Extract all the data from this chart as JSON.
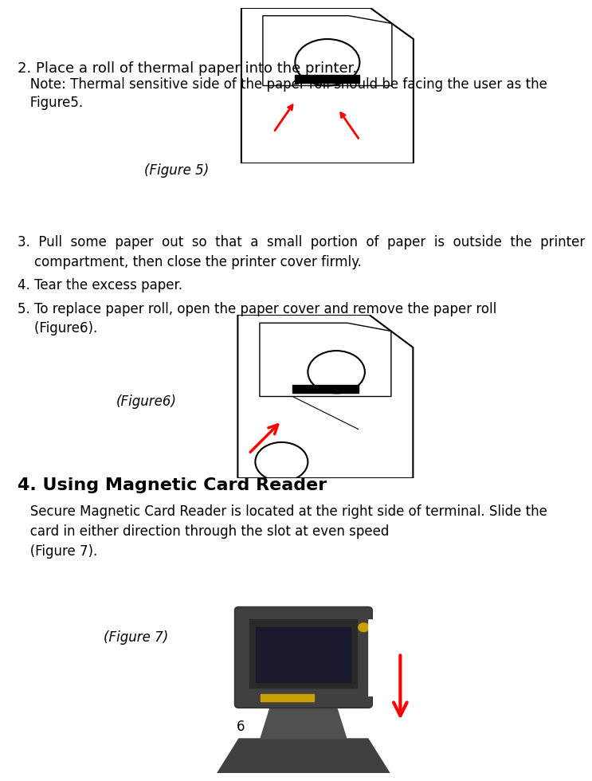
{
  "bg_color": "#ffffff",
  "text_color": "#000000",
  "page_number": "6",
  "section2_title": "2. Place a roll of thermal paper into the printer.",
  "section2_note": "   Note: Thermal sensitive side of the paper roll should be facing the user as the\n   Figure5.",
  "fig5_label": "(Figure 5)",
  "section3_text": "3.  Pull  some  paper  out  so  that  a  small  portion  of  paper  is  outside  the  printer\n    compartment, then close the printer cover firmly.",
  "section4_text": "4. Tear the excess paper.",
  "section5_text": "5. To replace paper roll, open the paper cover and remove the paper roll\n    (Figure6).",
  "fig6_label": "(Figure6)",
  "section_mag_title": "4. Using Magnetic Card Reader",
  "section_mag_text": "   Secure Magnetic Card Reader is located at the right side of terminal. Slide the\n   card in either direction through the slot at even speed\n   (Figure 7).",
  "fig7_label": "(Figure 7)",
  "font_size_title": 13,
  "font_size_body": 12,
  "font_size_heading": 16
}
